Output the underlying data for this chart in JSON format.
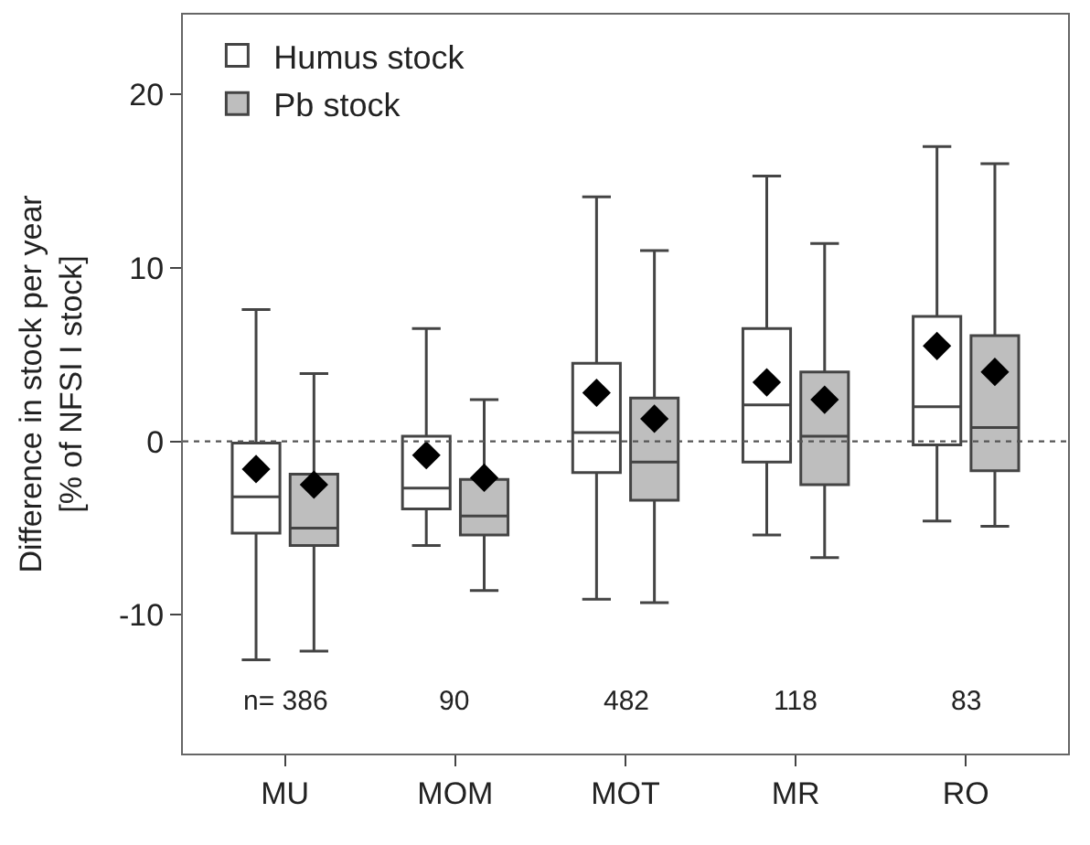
{
  "chart_data": {
    "type": "box",
    "ylabel": "Difference in stock per year\n[% of NFSI I stock]",
    "categories": [
      "MU",
      "MOM",
      "MOT",
      "MR",
      "RO"
    ],
    "series": [
      {
        "name": "Humus stock",
        "color": "#ffffff",
        "boxes": [
          {
            "low": -12.6,
            "q1": -5.3,
            "median": -3.2,
            "q3": -0.1,
            "high": 7.6,
            "mean": -1.6
          },
          {
            "low": -6.0,
            "q1": -3.9,
            "median": -2.7,
            "q3": 0.3,
            "high": 6.5,
            "mean": -0.8
          },
          {
            "low": -9.1,
            "q1": -1.8,
            "median": 0.5,
            "q3": 4.5,
            "high": 14.1,
            "mean": 2.8
          },
          {
            "low": -5.4,
            "q1": -1.2,
            "median": 2.1,
            "q3": 6.5,
            "high": 15.3,
            "mean": 3.4
          },
          {
            "low": -4.6,
            "q1": -0.2,
            "median": 2.0,
            "q3": 7.2,
            "high": 17.0,
            "mean": 5.5
          }
        ]
      },
      {
        "name": "Pb stock",
        "color": "#bebebe",
        "boxes": [
          {
            "low": -12.1,
            "q1": -6.0,
            "median": -5.0,
            "q3": -1.9,
            "high": 3.9,
            "mean": -2.5
          },
          {
            "low": -8.6,
            "q1": -5.4,
            "median": -4.3,
            "q3": -2.2,
            "high": 2.4,
            "mean": -2.1
          },
          {
            "low": -9.3,
            "q1": -3.4,
            "median": -1.2,
            "q3": 2.5,
            "high": 11.0,
            "mean": 1.3
          },
          {
            "low": -6.7,
            "q1": -2.5,
            "median": 0.3,
            "q3": 4.0,
            "high": 11.4,
            "mean": 2.4
          },
          {
            "low": -4.9,
            "q1": -1.7,
            "median": 0.8,
            "q3": 6.1,
            "high": 16.0,
            "mean": 4.0
          }
        ]
      }
    ],
    "annotations": [
      "n= 386",
      "90",
      "482",
      "118",
      "83"
    ],
    "ref_lines": [
      {
        "axis": "y",
        "value": 0,
        "color": "#555555",
        "line_style": "dotted"
      }
    ],
    "ylim": [
      -18,
      24.6
    ],
    "yticks": [
      -10,
      0,
      10,
      20
    ],
    "marker": "diamond",
    "legend": "top left"
  }
}
